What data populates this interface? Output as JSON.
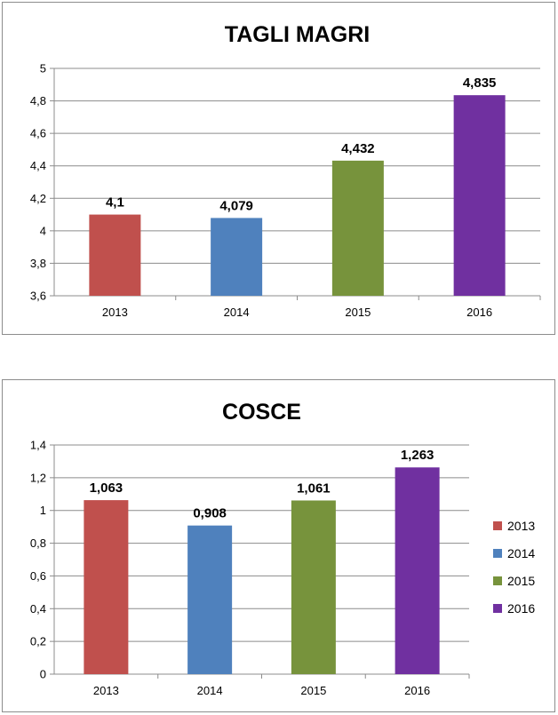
{
  "colors": {
    "2013": "#c0504d",
    "2014": "#4f81bd",
    "2015": "#77933c",
    "2016": "#7030a0",
    "grid": "#8c8c8c"
  },
  "chart_data": [
    {
      "type": "bar",
      "title": "TAGLI MAGRI",
      "categories": [
        "2013",
        "2014",
        "2015",
        "2016"
      ],
      "values": [
        4.1,
        4.079,
        4.432,
        4.835
      ],
      "value_labels": [
        "4,1",
        "4,079",
        "4,432",
        "4,835"
      ],
      "ylim": [
        3.6,
        5
      ],
      "yticks": [
        3.6,
        3.8,
        4,
        4.2,
        4.4,
        4.6,
        4.8,
        5
      ],
      "ytick_labels": [
        "3,6",
        "3,8",
        "4",
        "4,2",
        "4,4",
        "4,6",
        "4,8",
        "5"
      ],
      "grid": true,
      "legend": null
    },
    {
      "type": "bar",
      "title": "COSCE",
      "categories": [
        "2013",
        "2014",
        "2015",
        "2016"
      ],
      "values": [
        1.063,
        0.908,
        1.061,
        1.263
      ],
      "value_labels": [
        "1,063",
        "0,908",
        "1,061",
        "1,263"
      ],
      "ylim": [
        0,
        1.4
      ],
      "yticks": [
        0,
        0.2,
        0.4,
        0.6,
        0.8,
        1,
        1.2,
        1.4
      ],
      "ytick_labels": [
        "0",
        "0,2",
        "0,4",
        "0,6",
        "0,8",
        "1",
        "1,2",
        "1,4"
      ],
      "grid": true,
      "legend": {
        "placement": "right",
        "entries": [
          "2013",
          "2014",
          "2015",
          "2016"
        ]
      }
    }
  ]
}
